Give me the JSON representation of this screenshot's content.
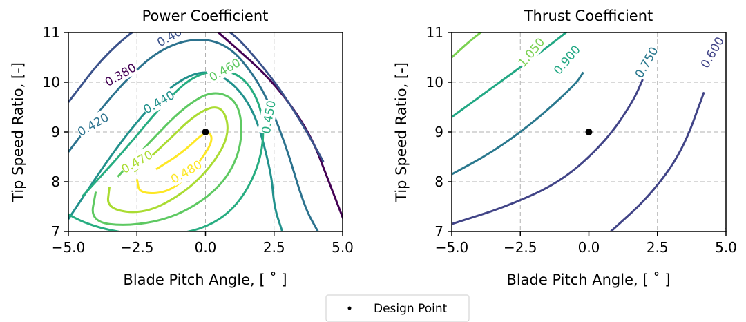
{
  "chart_data": [
    {
      "type": "contour",
      "title": "Power Coefficient",
      "xlabel": "Blade Pitch Angle, [$^\\circ$]",
      "xlabel_text": "Blade Pitch Angle, [ ˚ ]",
      "ylabel": "Tip Speed Ratio, [-]",
      "xlim": [
        -5.0,
        5.0
      ],
      "ylim": [
        7,
        11
      ],
      "xticks": [
        "−5.0",
        "−2.5",
        "0.0",
        "2.5",
        "5.0"
      ],
      "yticks": [
        "7",
        "8",
        "9",
        "10",
        "11"
      ],
      "grid": true,
      "colormap": "viridis",
      "levels": [
        {
          "value": 0.38,
          "label": "0.380",
          "color": "#440154"
        },
        {
          "value": 0.4,
          "label": "0.400",
          "color": "#3b528b"
        },
        {
          "value": 0.42,
          "label": "0.420",
          "color": "#2c728e"
        },
        {
          "value": 0.44,
          "label": "0.440",
          "color": "#21918c"
        },
        {
          "value": 0.45,
          "label": "0.450",
          "color": "#27ad81"
        },
        {
          "value": 0.46,
          "label": "0.460",
          "color": "#5ec962"
        },
        {
          "value": 0.47,
          "label": "0.470",
          "color": "#aadc32"
        },
        {
          "value": 0.48,
          "label": "0.480",
          "color": "#fde725"
        }
      ],
      "design_point": {
        "x": 0.0,
        "y": 9.0
      }
    },
    {
      "type": "contour",
      "title": "Thrust Coefficient",
      "xlabel": "Blade Pitch Angle, [$^\\circ$]",
      "xlabel_text": "Blade Pitch Angle, [ ˚ ]",
      "ylabel": "Tip Speed Ratio, [-]",
      "xlim": [
        -5.0,
        5.0
      ],
      "ylim": [
        7,
        11
      ],
      "xticks": [
        "−5.0",
        "−2.5",
        "0.0",
        "2.5",
        "5.0"
      ],
      "yticks": [
        "7",
        "8",
        "9",
        "10",
        "11"
      ],
      "grid": true,
      "colormap": "viridis",
      "levels": [
        {
          "value": 1.05,
          "label": "1.050",
          "color": "#7ad151"
        },
        {
          "value": 0.9,
          "label": "0.900",
          "color": "#22a884"
        },
        {
          "value": 0.75,
          "label": "0.750",
          "color": "#2a788e"
        },
        {
          "value": 0.6,
          "label": "0.600",
          "color": "#414487"
        }
      ],
      "design_point": {
        "x": 0.0,
        "y": 9.0
      }
    }
  ],
  "legend": {
    "label": "Design Point",
    "placement": "bottom-center"
  }
}
